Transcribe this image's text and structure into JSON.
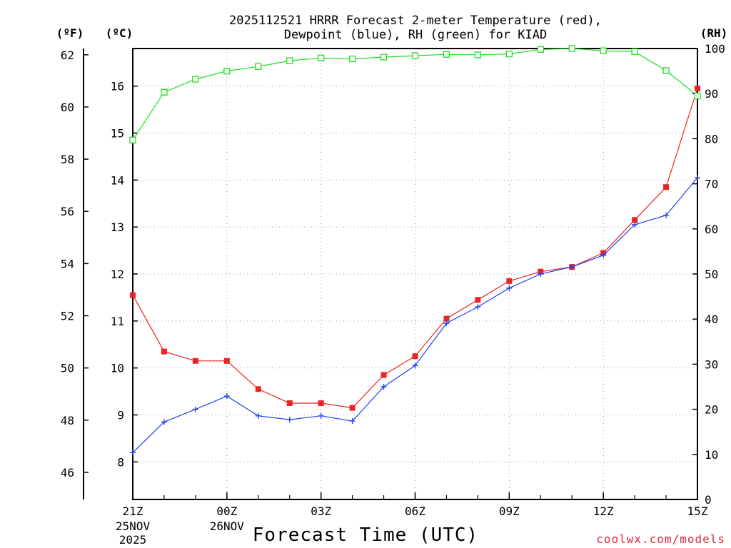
{
  "title": {
    "line1": "2025112521 HRRR Forecast 2-meter Temperature (red),",
    "line2": "Dewpoint (blue), RH (green) for KIAD"
  },
  "units": {
    "left_f": "(ºF)",
    "left_c": "(ºC)",
    "right_rh": "(RH)"
  },
  "x_axis_title": "Forecast Time (UTC)",
  "credit": "coolwx.com/models",
  "x_tick_labels": [
    {
      "label": "21Z",
      "sub1": "25NOV",
      "sub2": "2025",
      "h": 0
    },
    {
      "label": "00Z",
      "sub1": "26NOV",
      "sub2": "",
      "h": 3
    },
    {
      "label": "03Z",
      "sub1": "",
      "sub2": "",
      "h": 6
    },
    {
      "label": "06Z",
      "sub1": "",
      "sub2": "",
      "h": 9
    },
    {
      "label": "09Z",
      "sub1": "",
      "sub2": "",
      "h": 12
    },
    {
      "label": "12Z",
      "sub1": "",
      "sub2": "",
      "h": 15
    },
    {
      "label": "15Z",
      "sub1": "",
      "sub2": "",
      "h": 18
    }
  ],
  "colors": {
    "temperature": "#ee2222",
    "dewpoint": "#2244ee",
    "rh": "#22dd22",
    "grid": "#999999",
    "credit": "#e0283a"
  },
  "chart_data": {
    "type": "line",
    "x_label": "Forecast Time (UTC)",
    "x_unit": "forecast hour from 21Z 25NOV 2025",
    "x": [
      0,
      1,
      2,
      3,
      4,
      5,
      6,
      7,
      8,
      9,
      10,
      11,
      12,
      13,
      14,
      15,
      16,
      17,
      18
    ],
    "xlim": [
      0,
      18
    ],
    "y_left_c": {
      "label": "(ºC)",
      "ticks": [
        "8",
        "9",
        "10",
        "11",
        "12",
        "13",
        "14",
        "15",
        "16"
      ],
      "lim": [
        7.2,
        16.8
      ]
    },
    "y_left_f": {
      "label": "(ºF)",
      "ticks": [
        "46",
        "48",
        "50",
        "52",
        "54",
        "56",
        "58",
        "60",
        "62"
      ]
    },
    "y_right": {
      "label": "(RH)",
      "ticks": [
        "0",
        "10",
        "20",
        "30",
        "40",
        "50",
        "60",
        "70",
        "80",
        "90",
        "100"
      ],
      "lim": [
        0,
        100
      ]
    },
    "series": [
      {
        "name": "Temperature",
        "axis": "C",
        "marker": "square-filled",
        "values": [
          11.55,
          10.35,
          10.15,
          10.15,
          9.55,
          9.25,
          9.25,
          9.15,
          9.85,
          10.25,
          11.05,
          11.45,
          11.85,
          12.05,
          12.15,
          12.45,
          13.15,
          13.85,
          15.95
        ]
      },
      {
        "name": "Dewpoint",
        "axis": "C",
        "marker": "plus",
        "values": [
          8.2,
          8.85,
          9.12,
          9.4,
          8.98,
          8.9,
          8.98,
          8.87,
          9.6,
          10.05,
          10.95,
          11.3,
          11.7,
          12.0,
          12.15,
          12.4,
          13.05,
          13.25,
          14.05
        ]
      },
      {
        "name": "RH",
        "axis": "RH",
        "marker": "square-open",
        "values": [
          79.7,
          90.3,
          93.2,
          95.0,
          96.0,
          97.3,
          97.9,
          97.7,
          98.1,
          98.4,
          98.7,
          98.6,
          98.8,
          99.8,
          100.0,
          99.5,
          99.3,
          95.1,
          89.5
        ]
      }
    ]
  }
}
